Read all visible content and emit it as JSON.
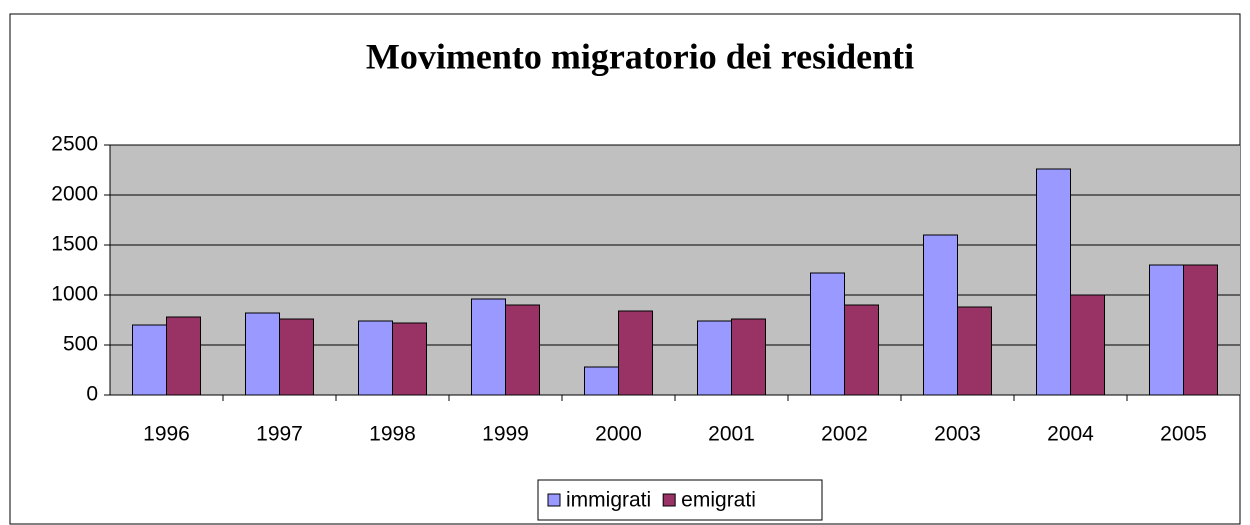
{
  "chart_data": {
    "type": "bar",
    "title": "Movimento migratorio dei residenti",
    "categories": [
      "1996",
      "1997",
      "1998",
      "1999",
      "2000",
      "2001",
      "2002",
      "2003",
      "2004",
      "2005"
    ],
    "series": [
      {
        "name": "immigrati",
        "color": "#9999ff",
        "values": [
          700,
          820,
          740,
          960,
          280,
          740,
          1220,
          1600,
          2260,
          1300
        ]
      },
      {
        "name": "emigrati",
        "color": "#993366",
        "values": [
          780,
          760,
          720,
          900,
          840,
          760,
          900,
          880,
          1000,
          1300
        ]
      }
    ],
    "ylim": [
      0,
      2500
    ],
    "yticks": [
      0,
      500,
      1000,
      1500,
      2000,
      2500
    ],
    "grid": true,
    "legend": "bottom"
  }
}
